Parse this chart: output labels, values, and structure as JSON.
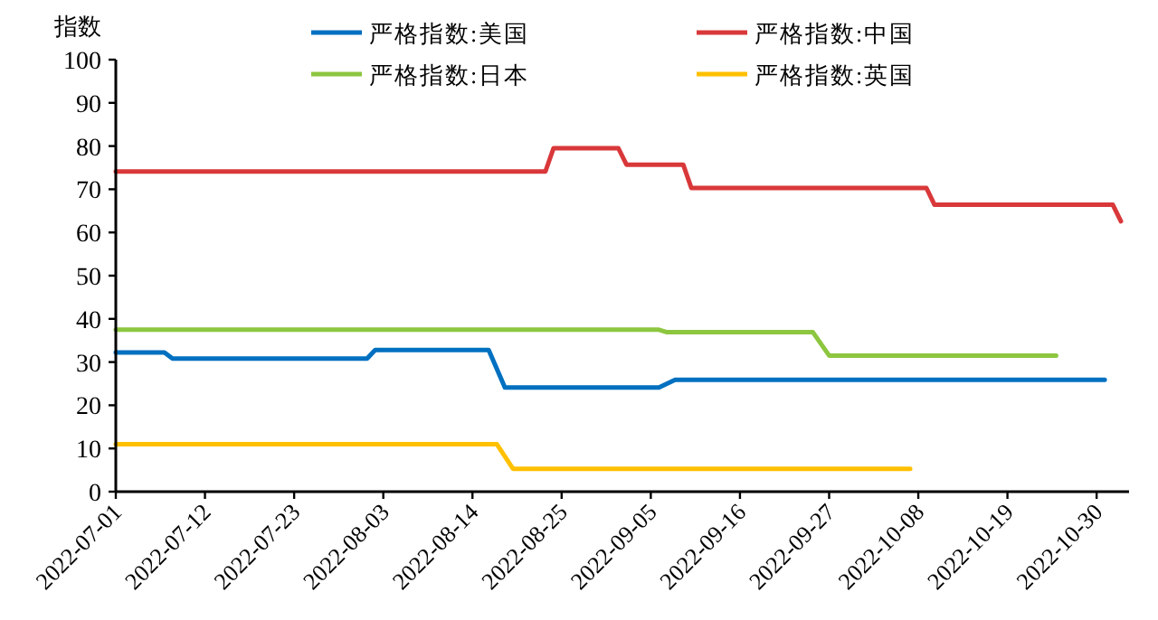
{
  "chart_data": {
    "type": "line",
    "ylabel": "指数",
    "legend": "top",
    "grid": false,
    "line_style": "solid",
    "xlim": [
      "2022-07-01",
      "2022-11-03"
    ],
    "xticks": [
      "2022-07-01",
      "2022-07-12",
      "2022-07-23",
      "2022-08-03",
      "2022-08-14",
      "2022-08-25",
      "2022-09-05",
      "2022-09-16",
      "2022-09-27",
      "2022-10-08",
      "2022-10-19",
      "2022-10-30"
    ],
    "ylim": [
      0,
      100
    ],
    "yticks": [
      0,
      10,
      20,
      30,
      40,
      50,
      60,
      70,
      80,
      90,
      100
    ],
    "series": [
      {
        "name": "严格指数:美国",
        "color": "#0070c0",
        "x": [
          "2022-07-01",
          "2022-07-07",
          "2022-07-08",
          "2022-08-01",
          "2022-08-02",
          "2022-08-16",
          "2022-08-18",
          "2022-09-06",
          "2022-09-08",
          "2022-10-31"
        ],
        "values": [
          32.2,
          32.2,
          30.8,
          30.8,
          32.8,
          32.8,
          24.1,
          24.1,
          25.9,
          25.9
        ]
      },
      {
        "name": "严格指数:中国",
        "color": "#d9383a",
        "x": [
          "2022-07-01",
          "2022-08-23",
          "2022-08-24",
          "2022-09-01",
          "2022-09-02",
          "2022-09-09",
          "2022-09-10",
          "2022-10-09",
          "2022-10-10",
          "2022-11-01",
          "2022-11-02"
        ],
        "values": [
          74.1,
          74.1,
          79.5,
          79.5,
          75.7,
          75.7,
          70.3,
          70.3,
          66.4,
          66.4,
          62.6
        ]
      },
      {
        "name": "严格指数:日本",
        "color": "#8dc63f",
        "x": [
          "2022-07-01",
          "2022-09-06",
          "2022-09-07",
          "2022-09-25",
          "2022-09-27",
          "2022-10-25"
        ],
        "values": [
          37.5,
          37.5,
          36.9,
          36.9,
          31.5,
          31.5
        ]
      },
      {
        "name": "严格指数:英国",
        "color": "#ffc000",
        "x": [
          "2022-07-01",
          "2022-08-17",
          "2022-08-19",
          "2022-10-07"
        ],
        "values": [
          11,
          11,
          5.3,
          5.3
        ]
      }
    ]
  }
}
